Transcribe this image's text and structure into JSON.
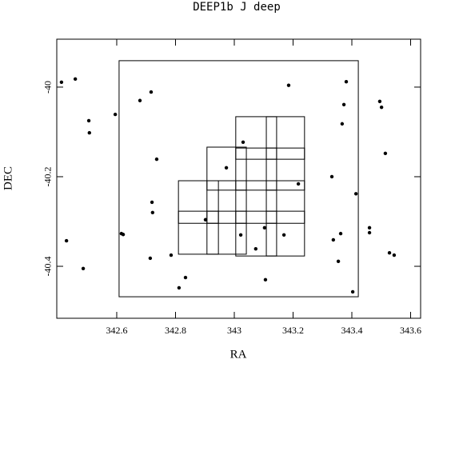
{
  "chart_data": {
    "type": "scatter",
    "title": "DEEP1b J deep",
    "x_label": "RA",
    "y_label": "DEC",
    "x": [
      342.412,
      342.459,
      342.505,
      342.507,
      342.486,
      342.429,
      342.595,
      342.616,
      342.622,
      342.679,
      342.717,
      342.736,
      342.72,
      342.722,
      342.714,
      342.785,
      342.834,
      342.812,
      342.902,
      342.973,
      343.03,
      343.022,
      343.073,
      343.103,
      343.106,
      343.169,
      343.218,
      343.185,
      343.332,
      343.337,
      343.381,
      343.373,
      343.367,
      343.362,
      343.354,
      343.403,
      343.414,
      343.46,
      343.46,
      343.495,
      343.501,
      343.514,
      343.528,
      343.544
    ],
    "y": [
      -39.989,
      -39.982,
      -40.075,
      -40.102,
      -40.405,
      -40.343,
      -40.061,
      -40.327,
      -40.329,
      -40.03,
      -40.011,
      -40.161,
      -40.257,
      -40.28,
      -40.382,
      -40.375,
      -40.425,
      -40.448,
      -40.296,
      -40.18,
      -40.123,
      -40.33,
      -40.361,
      -40.314,
      -40.43,
      -40.33,
      -40.216,
      -39.996,
      -40.2,
      -40.341,
      -39.988,
      -40.039,
      -40.082,
      -40.327,
      -40.389,
      -40.457,
      -40.238,
      -40.314,
      -40.325,
      -40.032,
      -40.045,
      -40.148,
      -40.37,
      -40.375
    ],
    "color": "#000000",
    "boxes": [
      {
        "ra": [
          342.608,
          343.422
        ],
        "dec": [
          -40.468,
          -39.941
        ]
      },
      {
        "ra": [
          342.81,
          342.946
        ],
        "dec": [
          -40.304,
          -40.209
        ]
      },
      {
        "ra": [
          342.81,
          342.946
        ],
        "dec": [
          -40.373,
          -40.277
        ]
      },
      {
        "ra": [
          342.907,
          343.041
        ],
        "dec": [
          -40.23,
          -40.134
        ]
      },
      {
        "ra": [
          342.907,
          343.041
        ],
        "dec": [
          -40.304,
          -40.209
        ]
      },
      {
        "ra": [
          342.907,
          343.041
        ],
        "dec": [
          -40.373,
          -40.277
        ]
      },
      {
        "ra": [
          343.005,
          343.144
        ],
        "dec": [
          -40.161,
          -40.066
        ]
      },
      {
        "ra": [
          343.005,
          343.144
        ],
        "dec": [
          -40.23,
          -40.136
        ]
      },
      {
        "ra": [
          343.005,
          343.144
        ],
        "dec": [
          -40.304,
          -40.209
        ]
      },
      {
        "ra": [
          343.005,
          343.144
        ],
        "dec": [
          -40.377,
          -40.277
        ]
      },
      {
        "ra": [
          343.109,
          343.239
        ],
        "dec": [
          -40.161,
          -40.066
        ]
      },
      {
        "ra": [
          343.109,
          343.239
        ],
        "dec": [
          -40.23,
          -40.136
        ]
      },
      {
        "ra": [
          343.109,
          343.239
        ],
        "dec": [
          -40.304,
          -40.209
        ]
      },
      {
        "ra": [
          343.109,
          343.239
        ],
        "dec": [
          -40.377,
          -40.277
        ]
      }
    ],
    "xlim": [
      342.396,
      343.634
    ],
    "ylim": [
      -40.516,
      -39.893
    ],
    "xticks": [
      342.6,
      342.8,
      343,
      343.2,
      343.4,
      343.6
    ],
    "yticks": [
      -40,
      -40.2,
      -40.4
    ]
  }
}
